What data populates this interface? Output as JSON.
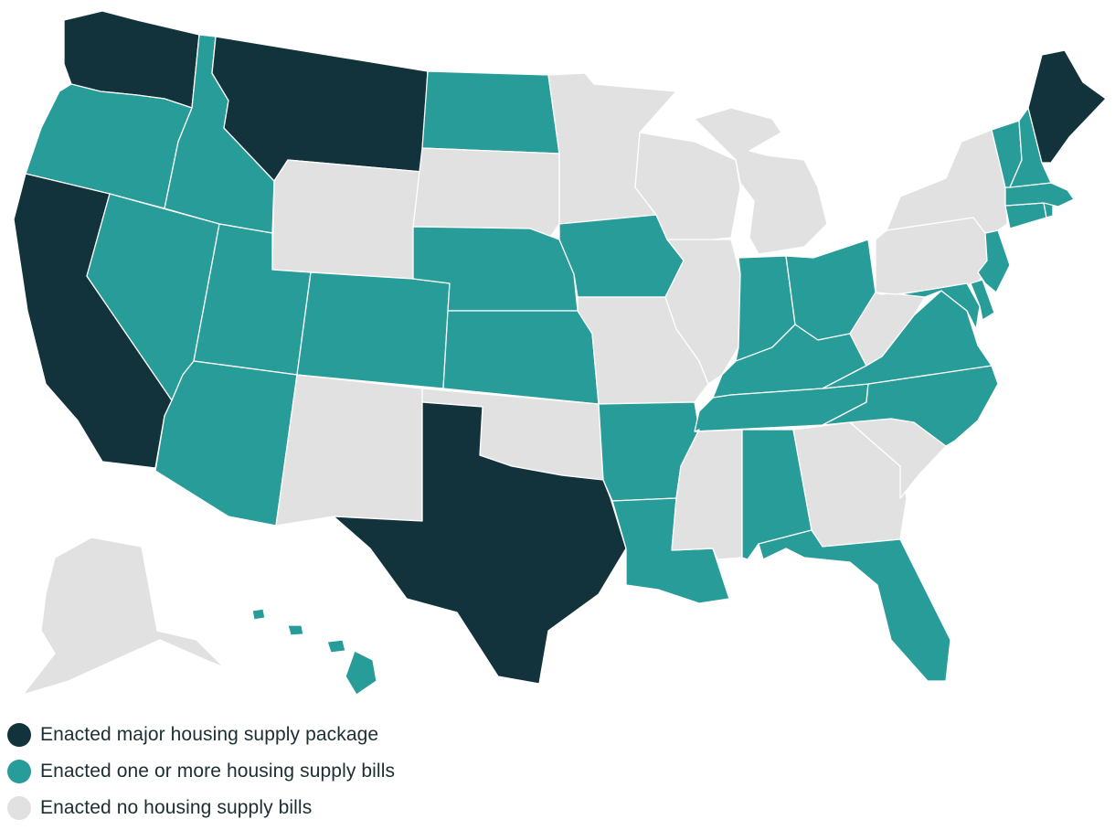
{
  "colors": {
    "major": "#12333c",
    "bills": "#279c98",
    "none": "#e1e1e1"
  },
  "legend": [
    {
      "key": "major",
      "label": "Enacted major housing supply package"
    },
    {
      "key": "bills",
      "label": "Enacted one or more housing supply bills"
    },
    {
      "key": "none",
      "label": "Enacted no housing supply bills"
    }
  ],
  "states": {
    "WA": "major",
    "MT": "major",
    "CA": "major",
    "TX": "major",
    "ME": "major",
    "OR": "bills",
    "ID": "bills",
    "NV": "bills",
    "UT": "bills",
    "AZ": "bills",
    "CO": "bills",
    "ND": "bills",
    "NE": "bills",
    "KS": "bills",
    "IA": "bills",
    "AR": "bills",
    "LA": "bills",
    "IN": "bills",
    "OH": "bills",
    "KY": "bills",
    "TN": "bills",
    "AL": "bills",
    "FL": "bills",
    "VA": "bills",
    "NC": "bills",
    "MD": "bills",
    "DE": "bills",
    "NJ": "bills",
    "CT": "bills",
    "RI": "bills",
    "MA": "bills",
    "VT": "bills",
    "NH": "bills",
    "HI": "bills",
    "WY": "none",
    "SD": "none",
    "MN": "none",
    "WI": "none",
    "MI": "none",
    "NY": "none",
    "PA": "none",
    "WV": "none",
    "IL": "none",
    "MO": "none",
    "OK": "none",
    "NM": "none",
    "MS": "none",
    "GA": "none",
    "SC": "none",
    "AK": "none"
  }
}
